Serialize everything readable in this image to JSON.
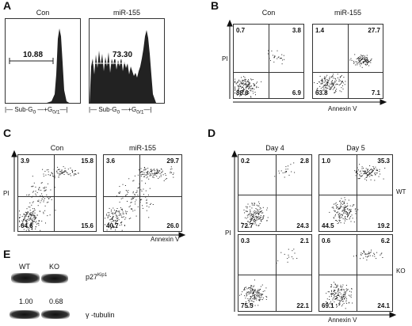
{
  "panels": {
    "A": {
      "letter": "A",
      "titles": [
        "Con",
        "miR-155"
      ],
      "values": [
        "10.88",
        "73.30"
      ],
      "axis_sub": "Sub-G",
      "axis_sub_sub": "0",
      "axis_g": "G",
      "axis_g_sub": "0/1"
    },
    "B": {
      "letter": "B",
      "titles": [
        "Con",
        "miR-155"
      ],
      "quads": [
        [
          "0.7",
          "3.8",
          "88.6",
          "6.9"
        ],
        [
          "1.4",
          "27.7",
          "63.8",
          "7.1"
        ]
      ],
      "ylabel": "PI",
      "xlabel": "Annexin V"
    },
    "C": {
      "letter": "C",
      "titles": [
        "Con",
        "miR-155"
      ],
      "quads": [
        [
          "3.9",
          "15.8",
          "64.6",
          "15.6"
        ],
        [
          "3.6",
          "29.7",
          "40.7",
          "26.0"
        ]
      ],
      "ylabel": "PI",
      "xlabel": "Annexin V"
    },
    "D": {
      "letter": "D",
      "titles": [
        "Day 4",
        "Day 5"
      ],
      "quads": [
        [
          "0.2",
          "2.8",
          "72.7",
          "24.3"
        ],
        [
          "1.0",
          "35.3",
          "44.5",
          "19.2"
        ],
        [
          "0.3",
          "2.1",
          "75.5",
          "22.1"
        ],
        [
          "0.6",
          "6.2",
          "69.1",
          "24.1"
        ]
      ],
      "row_labels": [
        "WT",
        "KO"
      ],
      "ylabel": "PI",
      "xlabel": "Annexin V"
    },
    "E": {
      "letter": "E",
      "lanes": [
        "WT",
        "KO"
      ],
      "band1_label": "p27",
      "band1_sup": "Kip1",
      "ratios": [
        "1.00",
        "0.68"
      ],
      "band2_label": "γ -tubulin"
    }
  },
  "colors": {
    "ink": "#111111",
    "lines": "#333333"
  }
}
